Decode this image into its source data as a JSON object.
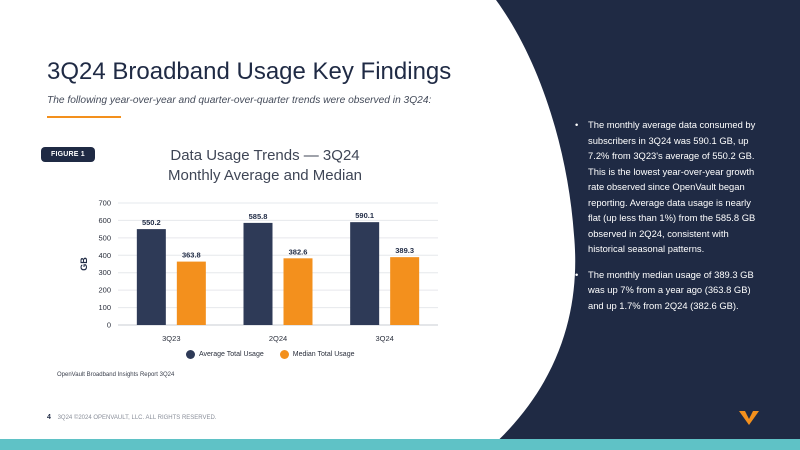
{
  "colors": {
    "navy": "#1f2a44",
    "bar_average": "#2e3a57",
    "bar_median": "#f3901d",
    "accent_orange": "#f3901d",
    "teal_bar": "#5fc2c6"
  },
  "slide": {
    "title": "3Q24 Broadband Usage Key Findings",
    "subtitle": "The following year-over-year and quarter-over-quarter trends were observed in 3Q24:",
    "figure_badge": "FIGURE 1",
    "chart_title_line1": "Data Usage Trends — 3Q24",
    "chart_title_line2": "Monthly Average and Median",
    "source_note": "OpenVault Broadband Insights Report 3Q24",
    "bullet_symbol": "•",
    "bullets": [
      "The monthly average data consumed by subscribers in 3Q24 was 590.1 GB, up 7.2% from 3Q23's average of 550.2 GB. This is the lowest year-over-year growth rate observed since OpenVault began reporting. Average data usage is nearly flat (up less than 1%) from the 585.8 GB observed in 2Q24, consistent with historical seasonal patterns.",
      "The monthly median usage of 389.3 GB was up 7% from a year ago (363.8 GB) and up 1.7% from 2Q24 (382.6 GB)."
    ]
  },
  "footer": {
    "page_number": "4",
    "text": "3Q24 ©2024 OPENVAULT, LLC. ALL RIGHTS RESERVED."
  },
  "logo": {
    "icon": "openvault-logo-icon"
  },
  "chart_data": {
    "type": "bar",
    "categories": [
      "3Q23",
      "2Q24",
      "3Q24"
    ],
    "series": [
      {
        "name": "Average Total Usage",
        "values": [
          550.2,
          585.8,
          590.1
        ]
      },
      {
        "name": "Median Total Usage",
        "values": [
          363.8,
          382.6,
          389.3
        ]
      }
    ],
    "data_labels": [
      [
        "550.2",
        "585.8",
        "590.1"
      ],
      [
        "363.8",
        "382.6",
        "389.3"
      ]
    ],
    "xlabel": "",
    "ylabel": "GB",
    "ylim": [
      0,
      700
    ],
    "yticks": [
      0,
      100,
      200,
      300,
      400,
      500,
      600,
      700
    ],
    "grid": true,
    "legend_position": "bottom"
  }
}
